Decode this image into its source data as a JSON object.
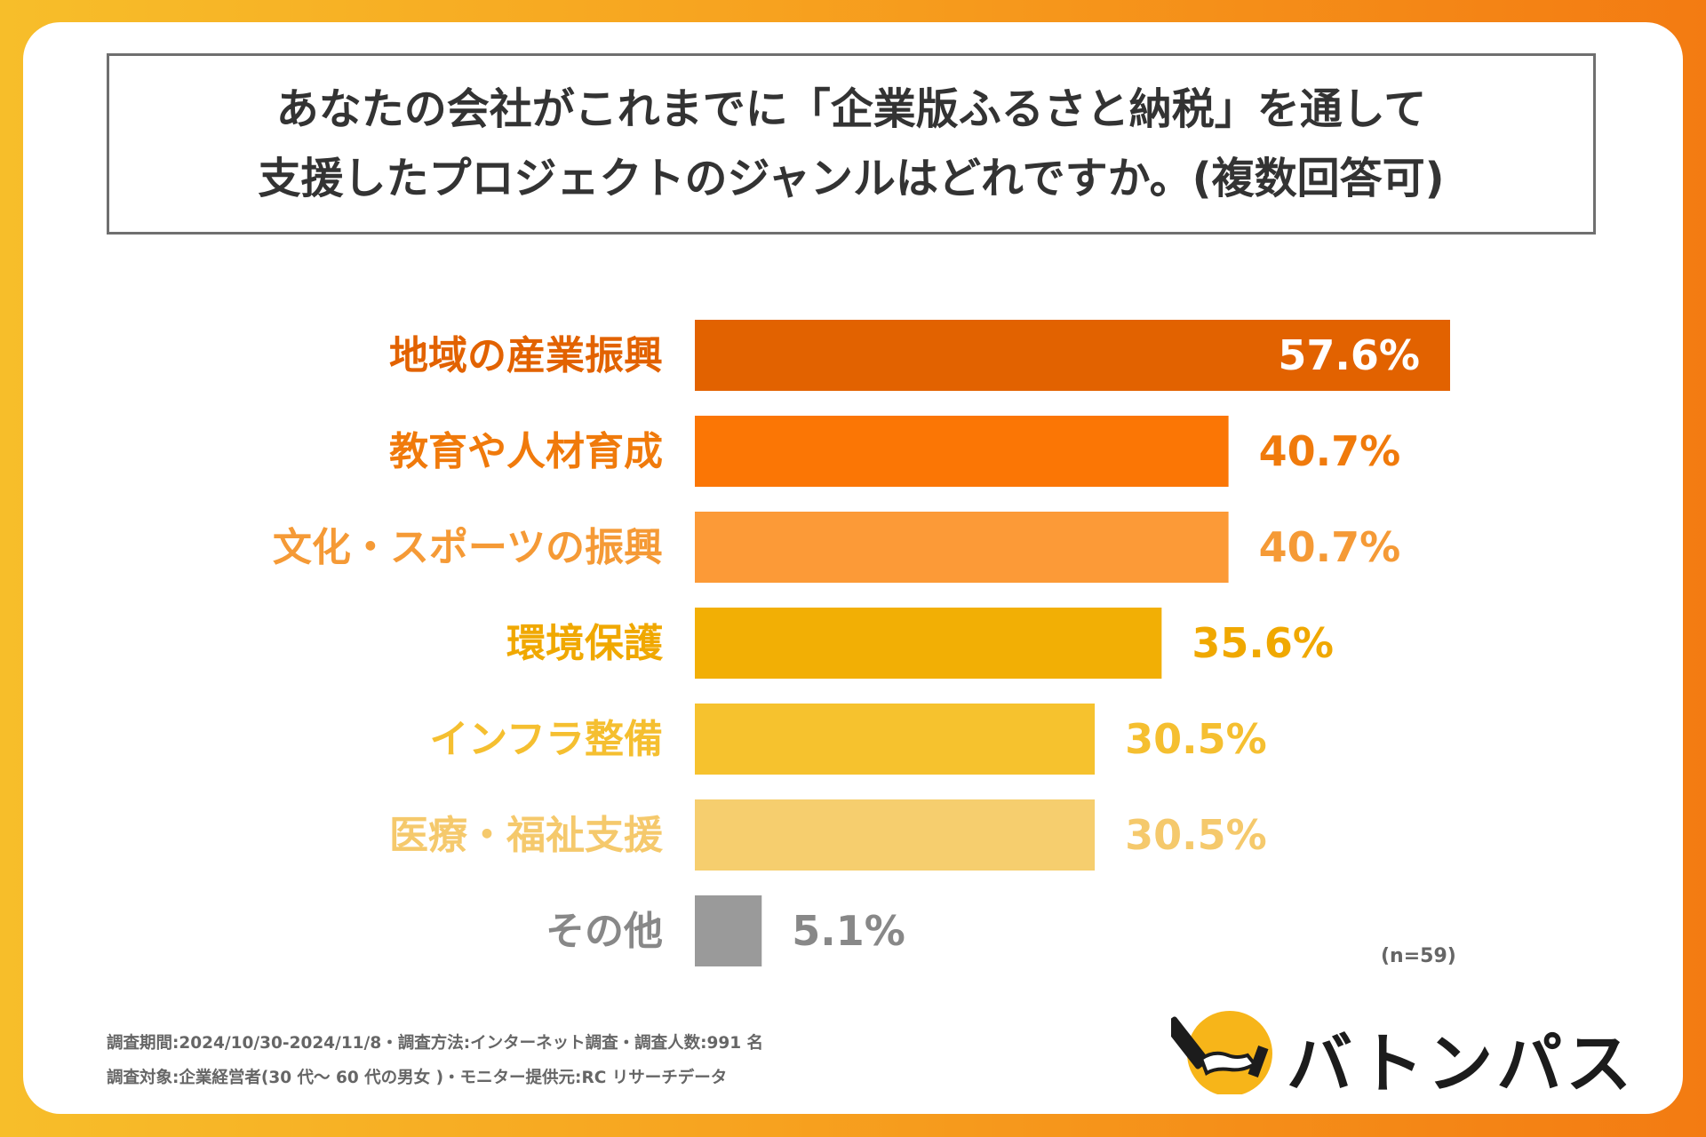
{
  "title": {
    "line1": "あなたの会社がこれまでに「企業版ふるさと納税」を通して",
    "line2": "支援したプロジェクトのジャンルはどれですか。(複数回答可)"
  },
  "chart_data": {
    "type": "bar",
    "orientation": "horizontal",
    "categories": [
      "地域の産業振興",
      "教育や人材育成",
      "文化・スポーツの振興",
      "環境保護",
      "インフラ整備",
      "医療・福祉支援",
      "その他"
    ],
    "values": [
      57.6,
      40.7,
      40.7,
      35.6,
      30.5,
      30.5,
      5.1
    ],
    "value_labels": [
      "57.6%",
      "40.7%",
      "40.7%",
      "35.6%",
      "30.5%",
      "30.5%",
      "5.1%"
    ],
    "bar_colors": [
      "#e26200",
      "#fb7605",
      "#fc9a37",
      "#f2af05",
      "#f6c22e",
      "#f6ce6e",
      "#9a9a9a"
    ],
    "label_colors": [
      "#e26200",
      "#f07a0b",
      "#f59a36",
      "#f0a800",
      "#f5bf30",
      "#f5c96c",
      "#888888"
    ],
    "value_colors": [
      "#ffffff",
      "#f07a0b",
      "#f59a36",
      "#f0a800",
      "#f5bf30",
      "#f5c96c",
      "#888888"
    ],
    "xlim": [
      0,
      57.6
    ],
    "sample_size": "(n=59)"
  },
  "footer": {
    "line1": "調査期間:2024/10/30-2024/11/8・調査方法:インターネット調査・調査人数:991 名",
    "line2": "調査対象:企業経営者(30 代〜 60 代の男女 )・モニター提供元:RC リサーチデータ"
  },
  "logo": {
    "text": "バトンパス",
    "circle_color": "#f7b519",
    "icon": "baton-hand-icon"
  }
}
